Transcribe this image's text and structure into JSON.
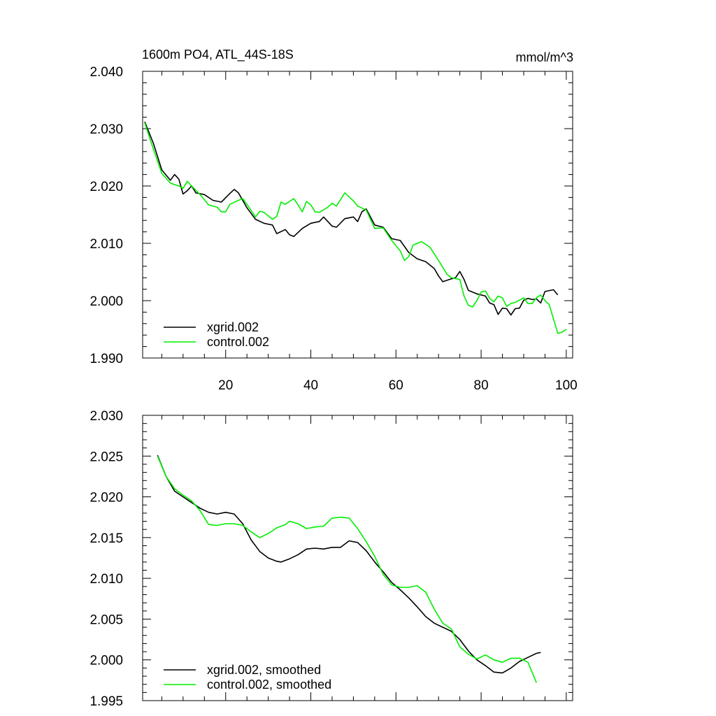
{
  "chart_data": [
    {
      "type": "line",
      "title": "1600m PO4, ATL_44S-18S",
      "units": "mmol/m^3",
      "xlabel": "",
      "ylabel": "",
      "xlim": [
        0.5,
        101.5
      ],
      "ylim": [
        1.99,
        2.04
      ],
      "yticks": [
        "2.040",
        "2.030",
        "2.020",
        "2.010",
        "2.000",
        "1.990"
      ],
      "ytick_values": [
        2.04,
        2.03,
        2.02,
        2.01,
        2.0,
        1.99
      ],
      "xticks": [
        "20",
        "40",
        "60",
        "80",
        "100"
      ],
      "xtick_values": [
        20,
        40,
        60,
        80,
        100
      ],
      "legend_position": "bottom-left",
      "series": [
        {
          "name": "xgrid.002",
          "color": "#000000",
          "points": [
            [
              1,
              2.0312
            ],
            [
              3,
              2.0275
            ],
            [
              5,
              2.0228
            ],
            [
              7,
              2.021
            ],
            [
              8,
              2.022
            ],
            [
              9,
              2.0212
            ],
            [
              10,
              2.0186
            ],
            [
              11,
              2.0192
            ],
            [
              12,
              2.02
            ],
            [
              13,
              2.0188
            ],
            [
              15,
              2.0185
            ],
            [
              17,
              2.0175
            ],
            [
              19,
              2.0172
            ],
            [
              21,
              2.0187
            ],
            [
              22,
              2.0194
            ],
            [
              23,
              2.0188
            ],
            [
              25,
              2.0162
            ],
            [
              27,
              2.0142
            ],
            [
              29,
              2.0135
            ],
            [
              31,
              2.0132
            ],
            [
              32,
              2.0117
            ],
            [
              34,
              2.0124
            ],
            [
              35,
              2.0115
            ],
            [
              36,
              2.0112
            ],
            [
              38,
              2.0126
            ],
            [
              40,
              2.0135
            ],
            [
              42,
              2.0138
            ],
            [
              43,
              2.0146
            ],
            [
              45,
              2.013
            ],
            [
              46,
              2.0128
            ],
            [
              48,
              2.0143
            ],
            [
              50,
              2.0146
            ],
            [
              51,
              2.0138
            ],
            [
              52,
              2.0155
            ],
            [
              53,
              2.016
            ],
            [
              55,
              2.0132
            ],
            [
              57,
              2.0128
            ],
            [
              59,
              2.0108
            ],
            [
              61,
              2.0105
            ],
            [
              63,
              2.0084
            ],
            [
              65,
              2.0073
            ],
            [
              67,
              2.0068
            ],
            [
              69,
              2.0056
            ],
            [
              70,
              2.0043
            ],
            [
              71,
              2.0033
            ],
            [
              73,
              2.0038
            ],
            [
              74,
              2.004
            ],
            [
              75,
              2.0051
            ],
            [
              76,
              2.0037
            ],
            [
              77,
              2.0018
            ],
            [
              79,
              2.0012
            ],
            [
              80,
              2.001
            ],
            [
              81,
              2.0008
            ],
            [
              82,
              1.9996
            ],
            [
              83,
              1.9993
            ],
            [
              84,
              1.9976
            ],
            [
              85,
              1.9987
            ],
            [
              86,
              1.9986
            ],
            [
              87,
              1.9975
            ],
            [
              88,
              1.9986
            ],
            [
              89,
              1.9987
            ],
            [
              90,
              2.0001
            ],
            [
              91,
              2.0004
            ],
            [
              92,
              2.0002
            ],
            [
              93,
              2.0003
            ],
            [
              94,
              1.9996
            ],
            [
              95,
              2.0016
            ],
            [
              97,
              2.0019
            ],
            [
              98,
              2.001
            ]
          ]
        },
        {
          "name": "control.002",
          "color": "#00ee00",
          "points": [
            [
              1,
              2.031
            ],
            [
              3,
              2.0265
            ],
            [
              5,
              2.0222
            ],
            [
              7,
              2.0205
            ],
            [
              9,
              2.02
            ],
            [
              10,
              2.0196
            ],
            [
              11,
              2.0208
            ],
            [
              12,
              2.02
            ],
            [
              14,
              2.0185
            ],
            [
              16,
              2.0167
            ],
            [
              18,
              2.0163
            ],
            [
              19,
              2.0155
            ],
            [
              20,
              2.0155
            ],
            [
              21,
              2.0168
            ],
            [
              23,
              2.0175
            ],
            [
              24,
              2.0178
            ],
            [
              25,
              2.0168
            ],
            [
              27,
              2.0146
            ],
            [
              28,
              2.0156
            ],
            [
              29,
              2.0154
            ],
            [
              31,
              2.0142
            ],
            [
              32,
              2.0147
            ],
            [
              33,
              2.0172
            ],
            [
              34,
              2.0168
            ],
            [
              36,
              2.0178
            ],
            [
              37,
              2.0167
            ],
            [
              38,
              2.0155
            ],
            [
              39,
              2.0173
            ],
            [
              40,
              2.0167
            ],
            [
              41,
              2.0155
            ],
            [
              42,
              2.0154
            ],
            [
              44,
              2.0163
            ],
            [
              45,
              2.017
            ],
            [
              46,
              2.0165
            ],
            [
              48,
              2.0188
            ],
            [
              50,
              2.0174
            ],
            [
              51,
              2.0165
            ],
            [
              53,
              2.0158
            ],
            [
              55,
              2.0126
            ],
            [
              57,
              2.0127
            ],
            [
              59,
              2.0105
            ],
            [
              61,
              2.0087
            ],
            [
              62,
              2.007
            ],
            [
              63,
              2.0077
            ],
            [
              64,
              2.0097
            ],
            [
              66,
              2.0103
            ],
            [
              68,
              2.0093
            ],
            [
              70,
              2.007
            ],
            [
              72,
              2.0046
            ],
            [
              73,
              2.004
            ],
            [
              75,
              2.0037
            ],
            [
              76,
              2.0008
            ],
            [
              77,
              1.9992
            ],
            [
              78,
              1.9989
            ],
            [
              79,
              2.0
            ],
            [
              80,
              2.0015
            ],
            [
              81,
              2.0017
            ],
            [
              82,
              2.0004
            ],
            [
              83,
              1.9998
            ],
            [
              84,
              2.0008
            ],
            [
              85,
              2.0005
            ],
            [
              86,
              1.999
            ],
            [
              87,
              1.9995
            ],
            [
              88,
              1.9997
            ],
            [
              90,
              2.0005
            ],
            [
              91,
              1.9995
            ],
            [
              92,
              1.9995
            ],
            [
              93,
              2.0005
            ],
            [
              94,
              2.001
            ],
            [
              95,
              2.0
            ],
            [
              96,
              1.9993
            ],
            [
              98,
              1.9943
            ],
            [
              99,
              1.9945
            ],
            [
              100,
              1.995
            ]
          ]
        }
      ]
    },
    {
      "type": "line",
      "title": "",
      "xlabel": "",
      "ylabel": "",
      "xlim": [
        0.5,
        101.5
      ],
      "ylim": [
        1.995,
        2.03
      ],
      "yticks": [
        "2.030",
        "2.025",
        "2.020",
        "2.015",
        "2.010",
        "2.005",
        "2.000",
        "1.995"
      ],
      "ytick_values": [
        2.03,
        2.025,
        2.02,
        2.015,
        2.01,
        2.005,
        2.0,
        1.995
      ],
      "xticks": [],
      "xtick_values": [
        20,
        40,
        60,
        80,
        100
      ],
      "legend_position": "bottom-left",
      "series": [
        {
          "name": "xgrid.002, smoothed",
          "color": "#000000",
          "points": [
            [
              4,
              2.0251
            ],
            [
              6,
              2.0225
            ],
            [
              8,
              2.0207
            ],
            [
              10,
              2.02
            ],
            [
              12,
              2.0193
            ],
            [
              14,
              2.0186
            ],
            [
              16,
              2.0181
            ],
            [
              18,
              2.0179
            ],
            [
              20,
              2.0181
            ],
            [
              22,
              2.0179
            ],
            [
              24,
              2.0167
            ],
            [
              26,
              2.0147
            ],
            [
              28,
              2.0133
            ],
            [
              30,
              2.0125
            ],
            [
              32,
              2.0121
            ],
            [
              33,
              2.012
            ],
            [
              35,
              2.0124
            ],
            [
              37,
              2.0129
            ],
            [
              39,
              2.0136
            ],
            [
              41,
              2.0137
            ],
            [
              43,
              2.0136
            ],
            [
              45,
              2.0138
            ],
            [
              47,
              2.0138
            ],
            [
              49,
              2.0146
            ],
            [
              51,
              2.0144
            ],
            [
              53,
              2.0134
            ],
            [
              55,
              2.012
            ],
            [
              57,
              2.0108
            ],
            [
              59,
              2.0095
            ],
            [
              61,
              2.0086
            ],
            [
              63,
              2.0076
            ],
            [
              65,
              2.0065
            ],
            [
              67,
              2.0053
            ],
            [
              69,
              2.0045
            ],
            [
              71,
              2.004
            ],
            [
              73,
              2.0035
            ],
            [
              75,
              2.0025
            ],
            [
              77,
              2.0011
            ],
            [
              79,
              2.0
            ],
            [
              81,
              1.9993
            ],
            [
              83,
              1.9985
            ],
            [
              85,
              1.9984
            ],
            [
              87,
              1.999
            ],
            [
              89,
              1.9998
            ],
            [
              91,
              2.0003
            ],
            [
              93,
              2.0008
            ],
            [
              94,
              2.0009
            ]
          ]
        },
        {
          "name": "control.002, smoothed",
          "color": "#00ee00",
          "points": [
            [
              4,
              2.025
            ],
            [
              6,
              2.0225
            ],
            [
              8,
              2.021
            ],
            [
              10,
              2.0202
            ],
            [
              12,
              2.0195
            ],
            [
              14,
              2.0183
            ],
            [
              16,
              2.0166
            ],
            [
              18,
              2.0165
            ],
            [
              20,
              2.0167
            ],
            [
              22,
              2.0167
            ],
            [
              24,
              2.0165
            ],
            [
              26,
              2.0157
            ],
            [
              28,
              2.015
            ],
            [
              30,
              2.0155
            ],
            [
              32,
              2.0162
            ],
            [
              34,
              2.0166
            ],
            [
              35,
              2.017
            ],
            [
              37,
              2.0167
            ],
            [
              39,
              2.0161
            ],
            [
              41,
              2.0163
            ],
            [
              43,
              2.0164
            ],
            [
              45,
              2.0174
            ],
            [
              47,
              2.0175
            ],
            [
              49,
              2.0174
            ],
            [
              51,
              2.0161
            ],
            [
              53,
              2.0145
            ],
            [
              55,
              2.0127
            ],
            [
              57,
              2.0105
            ],
            [
              59,
              2.0092
            ],
            [
              61,
              2.0089
            ],
            [
              63,
              2.0089
            ],
            [
              65,
              2.0091
            ],
            [
              67,
              2.0083
            ],
            [
              69,
              2.0062
            ],
            [
              71,
              2.0045
            ],
            [
              73,
              2.0038
            ],
            [
              75,
              2.0016
            ],
            [
              77,
              2.0007
            ],
            [
              79,
              2.0001
            ],
            [
              81,
              2.0006
            ],
            [
              83,
              2.0
            ],
            [
              85,
              1.9997
            ],
            [
              87,
              2.0002
            ],
            [
              89,
              2.0002
            ],
            [
              91,
              1.9997
            ],
            [
              93,
              1.9972
            ]
          ]
        }
      ]
    }
  ]
}
